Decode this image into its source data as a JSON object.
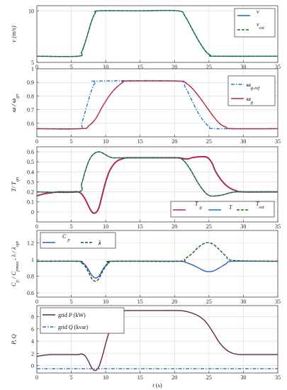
{
  "chart_data": [
    {
      "type": "line",
      "ylabel": "v (m/s)",
      "xlim": [
        0,
        35
      ],
      "ylim": [
        5,
        10.5
      ],
      "xticks": [
        0,
        5,
        10,
        15,
        20,
        25,
        30,
        35
      ],
      "yticks": [
        5,
        10
      ],
      "grid": true,
      "legend": "top-right",
      "series": [
        {
          "name": "v",
          "color": "#1f6fcf",
          "dash": "solid",
          "x": [
            0,
            6,
            6.5,
            7,
            7.5,
            8,
            8.5,
            9,
            15,
            20.5,
            21.5,
            22.5,
            23.5,
            24.5,
            25.2,
            26,
            35
          ],
          "y": [
            5.6,
            5.6,
            6.0,
            6.9,
            8.0,
            9.1,
            9.8,
            10.0,
            10.0,
            10.0,
            9.5,
            8.3,
            7.1,
            6.1,
            5.7,
            5.6,
            5.6
          ]
        },
        {
          "name": "v_est",
          "color": "#1a6b1a",
          "dash": "4,2",
          "x": [
            0,
            6,
            6.5,
            7,
            7.5,
            8,
            8.5,
            9,
            15,
            20.5,
            21.5,
            22.5,
            23.5,
            24.5,
            25.2,
            26,
            35
          ],
          "y": [
            5.6,
            5.6,
            6.0,
            6.9,
            8.0,
            9.1,
            9.8,
            10.0,
            10.0,
            10.0,
            9.5,
            8.3,
            7.1,
            6.1,
            5.7,
            5.6,
            5.6
          ]
        }
      ]
    },
    {
      "type": "line",
      "ylabel": "ω / ω_gn",
      "xlim": [
        0,
        35
      ],
      "ylim": [
        0.5,
        1.0
      ],
      "xticks": [
        0,
        5,
        10,
        15,
        20,
        25,
        30,
        35
      ],
      "yticks": [
        0.6,
        0.7,
        0.8,
        0.9,
        1
      ],
      "grid": true,
      "legend": "top-right",
      "series": [
        {
          "name": "ω_g-ref",
          "color": "#2a7ac4",
          "dash": "5,2,1.5,2",
          "x": [
            0,
            6,
            6.5,
            7,
            7.5,
            8,
            8.5,
            9,
            20.5,
            21.5,
            22.5,
            23.5,
            24.5,
            25.2,
            26,
            35
          ],
          "y": [
            0.56,
            0.56,
            0.6,
            0.68,
            0.77,
            0.85,
            0.9,
            0.91,
            0.91,
            0.87,
            0.77,
            0.67,
            0.6,
            0.57,
            0.56,
            0.56
          ]
        },
        {
          "name": "ω_g",
          "color": "#b0284e",
          "dash": "solid",
          "x": [
            0,
            6.5,
            7.5,
            8.5,
            9.5,
            10.5,
            11.5,
            12.5,
            13,
            20.5,
            21.5,
            22.5,
            23.5,
            24.5,
            25.5,
            26.5,
            27.5,
            28.5,
            35
          ],
          "y": [
            0.56,
            0.56,
            0.58,
            0.63,
            0.72,
            0.8,
            0.86,
            0.9,
            0.91,
            0.91,
            0.9,
            0.86,
            0.8,
            0.73,
            0.66,
            0.6,
            0.57,
            0.56,
            0.56
          ]
        }
      ]
    },
    {
      "type": "line",
      "ylabel": "T / T_gn",
      "xlim": [
        0,
        35
      ],
      "ylim": [
        -0.1,
        0.65
      ],
      "xticks": [
        0,
        5,
        10,
        15,
        20,
        25,
        30,
        35
      ],
      "yticks": [
        0,
        0.1,
        0.2,
        0.3,
        0.4,
        0.5,
        0.6
      ],
      "grid": true,
      "legend": "bottom-right",
      "series": [
        {
          "name": "T_g",
          "color": "#b0284e",
          "dash": "solid",
          "width": 2.0,
          "x": [
            0,
            1,
            2,
            3,
            4,
            5,
            6,
            6.5,
            7,
            7.5,
            8,
            8.5,
            9,
            9.5,
            10,
            10.5,
            11,
            11.5,
            12,
            13,
            14,
            15,
            18,
            20.5,
            21.5,
            22,
            22.5,
            23.5,
            24.5,
            25,
            25.5,
            26,
            27,
            28,
            29,
            30,
            35
          ],
          "y": [
            0.16,
            0.18,
            0.19,
            0.2,
            0.2,
            0.2,
            0.2,
            0.18,
            0.13,
            0.06,
            0.0,
            -0.01,
            0.04,
            0.17,
            0.3,
            0.4,
            0.46,
            0.5,
            0.52,
            0.54,
            0.54,
            0.54,
            0.54,
            0.54,
            0.53,
            0.53,
            0.54,
            0.55,
            0.55,
            0.53,
            0.48,
            0.4,
            0.3,
            0.24,
            0.21,
            0.2,
            0.2
          ]
        },
        {
          "name": "T",
          "color": "#2f6fbf",
          "dash": "solid",
          "x": [
            0,
            6,
            6.5,
            7,
            7.5,
            8,
            8.5,
            9,
            9.5,
            10,
            10.5,
            11,
            11.5,
            12,
            13,
            14,
            15,
            18,
            20.5,
            21.5,
            22.5,
            23.5,
            24.5,
            25.2,
            26,
            27,
            28,
            29,
            30,
            35
          ],
          "y": [
            0.2,
            0.2,
            0.28,
            0.4,
            0.5,
            0.56,
            0.59,
            0.6,
            0.59,
            0.57,
            0.55,
            0.54,
            0.54,
            0.54,
            0.54,
            0.54,
            0.54,
            0.54,
            0.54,
            0.5,
            0.4,
            0.28,
            0.19,
            0.16,
            0.16,
            0.17,
            0.19,
            0.2,
            0.2,
            0.2
          ]
        },
        {
          "name": "T_est",
          "color": "#1a6b1a",
          "dash": "4,2",
          "x": [
            0,
            6,
            6.5,
            7,
            7.5,
            8,
            8.5,
            9,
            9.5,
            10,
            10.5,
            11,
            11.5,
            12,
            13,
            14,
            15,
            18,
            20.5,
            21.5,
            22.5,
            23.5,
            24.5,
            25.2,
            26,
            27,
            28,
            29,
            30,
            35
          ],
          "y": [
            0.2,
            0.2,
            0.28,
            0.4,
            0.5,
            0.56,
            0.59,
            0.6,
            0.59,
            0.57,
            0.55,
            0.54,
            0.54,
            0.54,
            0.54,
            0.54,
            0.54,
            0.54,
            0.54,
            0.5,
            0.4,
            0.28,
            0.19,
            0.16,
            0.16,
            0.17,
            0.19,
            0.2,
            0.2,
            0.2
          ]
        }
      ]
    },
    {
      "type": "line",
      "ylabel": "C_p / C_pmax ,  λ / λ_opt",
      "xlim": [
        0,
        35
      ],
      "ylim": [
        0.55,
        1.35
      ],
      "xticks": [
        0,
        5,
        10,
        15,
        20,
        25,
        30,
        35
      ],
      "yticks": [
        0.6,
        0.8,
        1,
        1.2
      ],
      "grid": true,
      "legend": "top-left",
      "series": [
        {
          "name": "C_p",
          "color": "#2f5fbf",
          "dash": "solid",
          "x": [
            0,
            6,
            6.5,
            7,
            7.5,
            8,
            8.5,
            9,
            9.5,
            10,
            10.5,
            11,
            20.5,
            21.5,
            22.5,
            23.5,
            24.5,
            25.5,
            26.5,
            27.5,
            28.5,
            35
          ],
          "y": [
            0.98,
            0.98,
            0.97,
            0.94,
            0.88,
            0.81,
            0.78,
            0.8,
            0.87,
            0.93,
            0.97,
            0.98,
            0.98,
            0.97,
            0.94,
            0.9,
            0.86,
            0.86,
            0.9,
            0.95,
            0.98,
            0.98
          ]
        },
        {
          "name": "λ",
          "color": "#1a5a1a",
          "dash": "4,2",
          "x": [
            0,
            6,
            6.5,
            7,
            7.5,
            8,
            8.5,
            9,
            9.5,
            10,
            10.5,
            11,
            20.5,
            21.5,
            22.5,
            23.5,
            24.5,
            25.5,
            26.5,
            27.5,
            28.5,
            35
          ],
          "y": [
            0.98,
            0.98,
            0.96,
            0.92,
            0.85,
            0.77,
            0.74,
            0.77,
            0.85,
            0.92,
            0.96,
            0.98,
            0.98,
            1.01,
            1.07,
            1.15,
            1.2,
            1.19,
            1.12,
            1.04,
            0.99,
            0.98
          ]
        }
      ]
    },
    {
      "type": "line",
      "xlabel": "t (s)",
      "ylabel": "P, Q",
      "xlim": [
        0,
        35
      ],
      "ylim": [
        -1.2,
        9.8
      ],
      "xticks": [
        0,
        5,
        10,
        15,
        20,
        25,
        30,
        35
      ],
      "yticks": [
        0,
        2,
        4,
        6,
        8
      ],
      "grid": true,
      "legend": "top-left",
      "series": [
        {
          "name": "grid P (kW)",
          "color": "#6a2a2a",
          "dash": "solid",
          "x": [
            0,
            1,
            2,
            3,
            4,
            5,
            6,
            6.5,
            7,
            7.5,
            8,
            8.5,
            9,
            9.5,
            10,
            10.5,
            11,
            11.5,
            12,
            12.5,
            13,
            13.5,
            14,
            15,
            18,
            20.5,
            21.5,
            22.5,
            23.5,
            24.5,
            25.5,
            26.5,
            27.5,
            28.5,
            29.5,
            30.5,
            35
          ],
          "y": [
            1.5,
            1.7,
            1.8,
            1.8,
            1.8,
            1.8,
            1.8,
            1.9,
            1.6,
            0.7,
            -0.4,
            -0.8,
            -0.2,
            1.5,
            3.6,
            5.5,
            7.0,
            8.0,
            8.6,
            8.9,
            9.0,
            9.0,
            9.0,
            9.0,
            9.0,
            9.0,
            8.9,
            8.6,
            8.1,
            7.2,
            5.6,
            3.8,
            2.6,
            2.0,
            1.8,
            1.8,
            1.8
          ]
        },
        {
          "name": "grid Q (kvar)",
          "color": "#2f6fbf",
          "dash": "5,2,1.5,2",
          "x": [
            0,
            35
          ],
          "y": [
            -0.5,
            -0.5
          ]
        }
      ]
    }
  ],
  "legend_text": {
    "p1_v": "v",
    "p1_vest_base": "v",
    "p1_vest_sub": "est",
    "p2_ref_base": "ω",
    "p2_ref_sub": "g-ref",
    "p2_g_base": "ω",
    "p2_g_sub": "g",
    "p3_tg_base": "T",
    "p3_tg_sub": "g",
    "p3_t": "T",
    "p3_test_base": "T",
    "p3_test_sub": "est",
    "p4_cp_base": "C",
    "p4_cp_sub": "p",
    "p4_lam": "λ",
    "p5_p_a": "grid",
    "p5_p_b": "P",
    "p5_p_c": "(kW)",
    "p5_q_a": "grid",
    "p5_q_b": "Q",
    "p5_q_c": "(kvar)"
  },
  "axis_text": {
    "y1": "v",
    "y1_unit": "(m/s)",
    "y2": "ω / ω",
    "y2_sub": "gn",
    "y3": "T/ T",
    "y3_sub": "gn",
    "y4_a": "C",
    "y4_a_sub": "p",
    "y4_b": " / C",
    "y4_b_sub": "pmax",
    "y4_c": " ,  λ / λ",
    "y4_c_sub": "opt",
    "y5": "P, Q",
    "x5": "t",
    "x5_unit": "(s)"
  }
}
